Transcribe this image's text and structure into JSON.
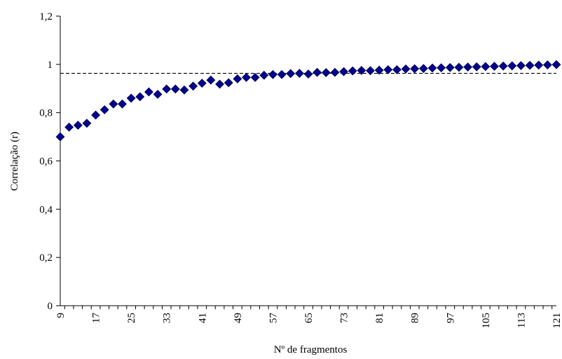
{
  "chart_data": {
    "type": "scatter",
    "title": "",
    "xlabel": "Nº de fragmentos",
    "ylabel": "Correlação (r)",
    "xlim": [
      9,
      121
    ],
    "ylim": [
      0,
      1.2
    ],
    "x_ticks": [
      9,
      17,
      25,
      33,
      41,
      49,
      57,
      65,
      73,
      81,
      89,
      97,
      105,
      113,
      121
    ],
    "x_tick_labels": [
      "9",
      "17",
      "25",
      "33",
      "41",
      "49",
      "57",
      "65",
      "73",
      "81",
      "89",
      "97",
      "105",
      "113",
      "121"
    ],
    "y_ticks": [
      0,
      0.2,
      0.4,
      0.6,
      0.8,
      1,
      1.2
    ],
    "y_tick_labels": [
      "0",
      "0,2",
      "0,4",
      "0,6",
      "0,8",
      "1",
      "1,2"
    ],
    "grid": false,
    "legend": "none",
    "reference_line": {
      "y": 0.963,
      "style": "dashed",
      "color": "#000000"
    },
    "marker": {
      "shape": "diamond",
      "color": "#00008B"
    },
    "series": [
      {
        "x": [
          9,
          11,
          13,
          15,
          17,
          19,
          21,
          23,
          25,
          27,
          29,
          31,
          33,
          35,
          37,
          39,
          41,
          43,
          45,
          47,
          49,
          51,
          53,
          55,
          57,
          59,
          61,
          63,
          65,
          67,
          69,
          71,
          73,
          75,
          77,
          79,
          81,
          83,
          85,
          87,
          89,
          91,
          93,
          95,
          97,
          99,
          101,
          103,
          105,
          107,
          109,
          111,
          113,
          115,
          117,
          119,
          121
        ],
        "values": [
          0.7,
          0.74,
          0.748,
          0.756,
          0.79,
          0.812,
          0.836,
          0.836,
          0.86,
          0.866,
          0.886,
          0.876,
          0.898,
          0.898,
          0.894,
          0.91,
          0.922,
          0.935,
          0.918,
          0.924,
          0.94,
          0.946,
          0.946,
          0.955,
          0.958,
          0.958,
          0.962,
          0.963,
          0.96,
          0.967,
          0.966,
          0.967,
          0.97,
          0.973,
          0.975,
          0.974,
          0.976,
          0.978,
          0.978,
          0.981,
          0.982,
          0.983,
          0.985,
          0.986,
          0.987,
          0.988,
          0.989,
          0.99,
          0.991,
          0.992,
          0.993,
          0.994,
          0.995,
          0.996,
          0.997,
          0.998,
          0.999
        ]
      }
    ]
  }
}
